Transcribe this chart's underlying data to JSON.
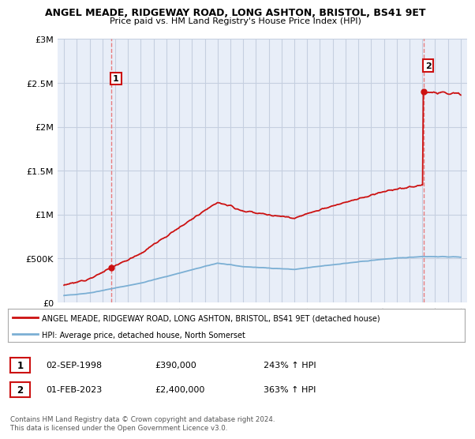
{
  "title": "ANGEL MEADE, RIDGEWAY ROAD, LONG ASHTON, BRISTOL, BS41 9ET",
  "subtitle": "Price paid vs. HM Land Registry's House Price Index (HPI)",
  "legend_line1": "ANGEL MEADE, RIDGEWAY ROAD, LONG ASHTON, BRISTOL, BS41 9ET (detached house)",
  "legend_line2": "HPI: Average price, detached house, North Somerset",
  "annotation1": {
    "label": "1",
    "date": "02-SEP-1998",
    "price": "£390,000",
    "hpi": "243% ↑ HPI"
  },
  "annotation2": {
    "label": "2",
    "date": "01-FEB-2023",
    "price": "£2,400,000",
    "hpi": "363% ↑ HPI"
  },
  "footer": "Contains HM Land Registry data © Crown copyright and database right 2024.\nThis data is licensed under the Open Government Licence v3.0.",
  "sale1_year": 1998.67,
  "sale1_price": 390000,
  "sale2_year": 2023.08,
  "sale2_price": 2400000,
  "hpi_color": "#7bafd4",
  "price_color": "#cc1111",
  "dashed_color": "#e87070",
  "chart_bg": "#e8eef8",
  "background_color": "#ffffff",
  "grid_color": "#c5cfe0",
  "ylim": [
    0,
    3000000
  ],
  "xlim": [
    1994.5,
    2026.5
  ],
  "yticks": [
    0,
    500000,
    1000000,
    1500000,
    2000000,
    2500000,
    3000000
  ],
  "ytick_labels": [
    "£0",
    "£500K",
    "£1M",
    "£1.5M",
    "£2M",
    "£2.5M",
    "£3M"
  ],
  "xticks": [
    1995,
    1996,
    1997,
    1998,
    1999,
    2000,
    2001,
    2002,
    2003,
    2004,
    2005,
    2006,
    2007,
    2008,
    2009,
    2010,
    2011,
    2012,
    2013,
    2014,
    2015,
    2016,
    2017,
    2018,
    2019,
    2020,
    2021,
    2022,
    2023,
    2024,
    2025,
    2026
  ]
}
